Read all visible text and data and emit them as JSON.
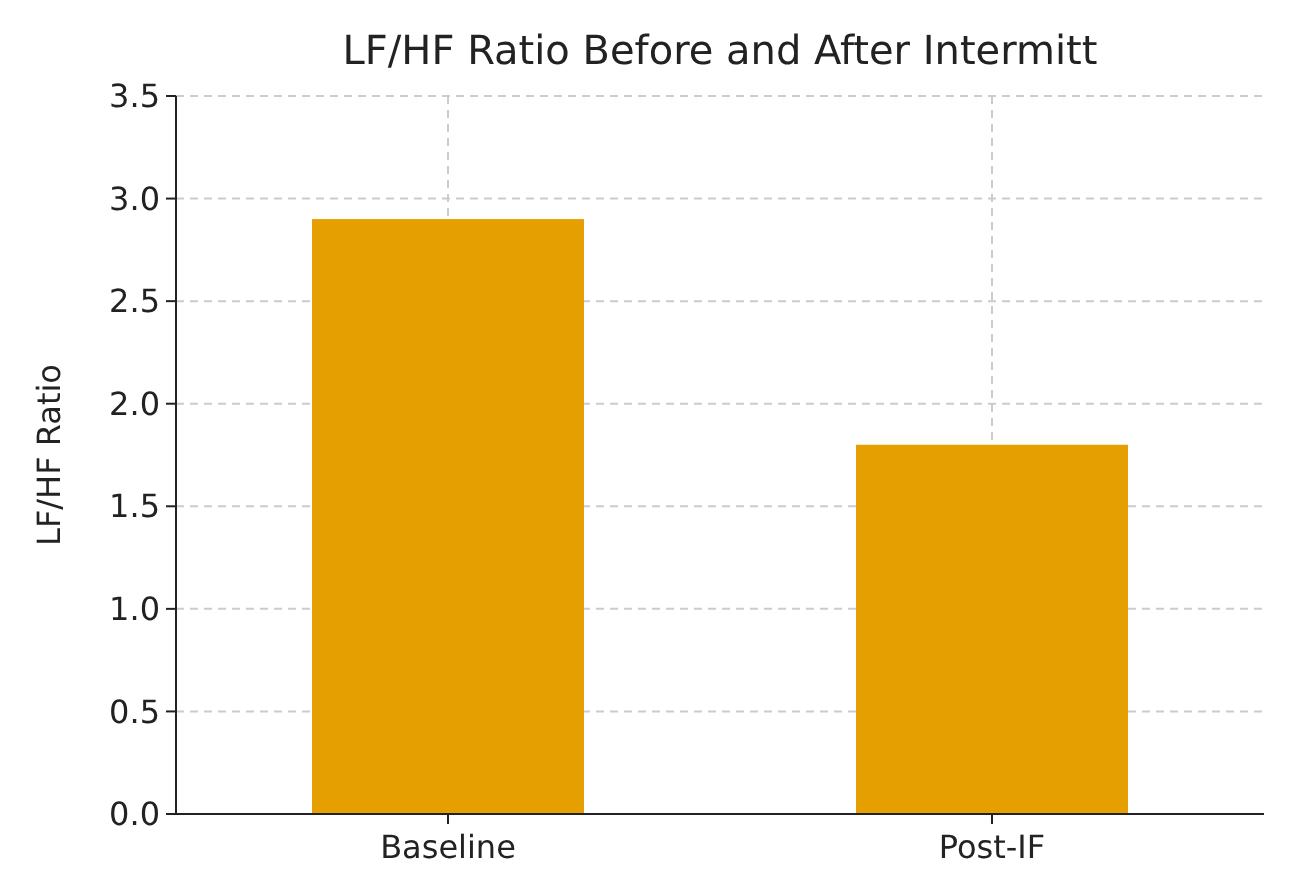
{
  "chart_data": {
    "type": "bar",
    "title": "LF/HF Ratio Before and After Intermitt",
    "ylabel": "LF/HF Ratio",
    "categories": [
      "Baseline",
      "Post-IF"
    ],
    "values": [
      2.9,
      1.8
    ],
    "color": "#e69f00",
    "ylim": [
      0,
      3.5
    ],
    "yticks": [
      {
        "value": 0,
        "label": "0.0"
      },
      {
        "value": 0.5,
        "label": "0.5"
      },
      {
        "value": 1,
        "label": "1.0"
      },
      {
        "value": 1.5,
        "label": "1.5"
      },
      {
        "value": 2,
        "label": "2.0"
      },
      {
        "value": 2.5,
        "label": "2.5"
      },
      {
        "value": 3,
        "label": "3.0"
      },
      {
        "value": 3.5,
        "label": "3.5"
      }
    ],
    "grid": true
  }
}
